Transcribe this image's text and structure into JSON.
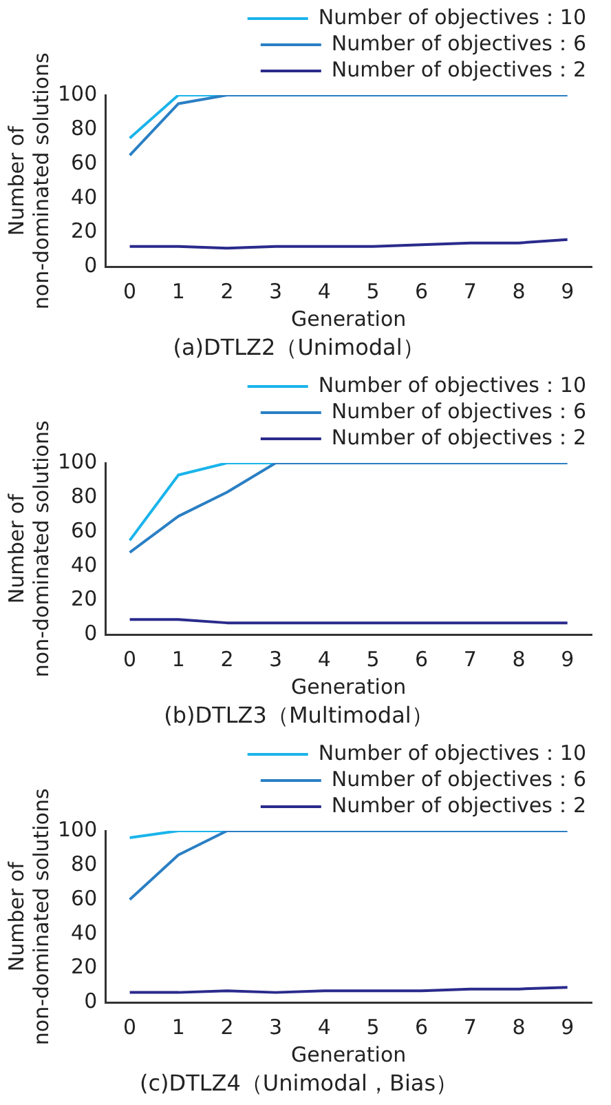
{
  "chart_data": [
    {
      "type": "line",
      "title": "(a)DTLZ2（Unimodal）",
      "xlabel": "Generation",
      "ylabel": "Number of\nnon-dominated solutions",
      "categories": [
        "0",
        "1",
        "2",
        "3",
        "4",
        "5",
        "6",
        "7",
        "8",
        "9"
      ],
      "ylim": [
        0,
        100
      ],
      "yticks": [
        0,
        20,
        40,
        60,
        80,
        100
      ],
      "grid": false,
      "legend": "top right",
      "marker": "none",
      "line_style": "solid",
      "series": [
        {
          "name": "Number of objectives：10",
          "color": "#1ab4ea",
          "values": [
            75,
            100,
            100,
            null,
            null,
            null,
            null,
            null,
            null,
            null
          ]
        },
        {
          "name": "Number of objectives：6",
          "color": "#2a7fc4",
          "values": [
            65,
            95,
            100,
            100,
            100,
            100,
            100,
            100,
            100,
            100
          ]
        },
        {
          "name": "Number of objectives：2",
          "color": "#2a2a8c",
          "values": [
            12,
            12,
            11,
            12,
            12,
            12,
            13,
            14,
            14,
            16
          ]
        }
      ]
    },
    {
      "type": "line",
      "title": "(b)DTLZ3（Multimodal）",
      "xlabel": "Generation",
      "ylabel": "Number of\nnon-dominated solutions",
      "categories": [
        "0",
        "1",
        "2",
        "3",
        "4",
        "5",
        "6",
        "7",
        "8",
        "9"
      ],
      "ylim": [
        0,
        100
      ],
      "yticks": [
        0,
        20,
        40,
        60,
        80,
        100
      ],
      "grid": false,
      "legend": "top right",
      "marker": "none",
      "line_style": "solid",
      "series": [
        {
          "name": "Number of objectives：10",
          "color": "#1ab4ea",
          "values": [
            55,
            93,
            100,
            100,
            null,
            null,
            null,
            null,
            null,
            null
          ]
        },
        {
          "name": "Number of objectives：6",
          "color": "#2a7fc4",
          "values": [
            48,
            69,
            83,
            100,
            100,
            100,
            100,
            100,
            100,
            100
          ]
        },
        {
          "name": "Number of objectives：2",
          "color": "#2a2a8c",
          "values": [
            9,
            9,
            7,
            7,
            7,
            7,
            7,
            7,
            7,
            7
          ]
        }
      ]
    },
    {
      "type": "line",
      "title": "(c)DTLZ4（Unimodal，Bias）",
      "xlabel": "Generation",
      "ylabel": "Number of\nnon-dominated solutions",
      "categories": [
        "0",
        "1",
        "2",
        "3",
        "4",
        "5",
        "6",
        "7",
        "8",
        "9"
      ],
      "ylim": [
        0,
        100
      ],
      "yticks": [
        0,
        20,
        40,
        60,
        80,
        100
      ],
      "grid": false,
      "legend": "top right",
      "marker": "none",
      "line_style": "solid",
      "series": [
        {
          "name": "Number of objectives：10",
          "color": "#1ab4ea",
          "values": [
            96,
            100,
            100,
            null,
            null,
            null,
            null,
            null,
            null,
            null
          ]
        },
        {
          "name": "Number of objectives：6",
          "color": "#2a7fc4",
          "values": [
            60,
            86,
            100,
            100,
            100,
            100,
            100,
            100,
            100,
            100
          ]
        },
        {
          "name": "Number of objectives：2",
          "color": "#2a2a8c",
          "values": [
            6,
            6,
            7,
            6,
            7,
            7,
            7,
            8,
            8,
            9
          ]
        }
      ]
    }
  ]
}
